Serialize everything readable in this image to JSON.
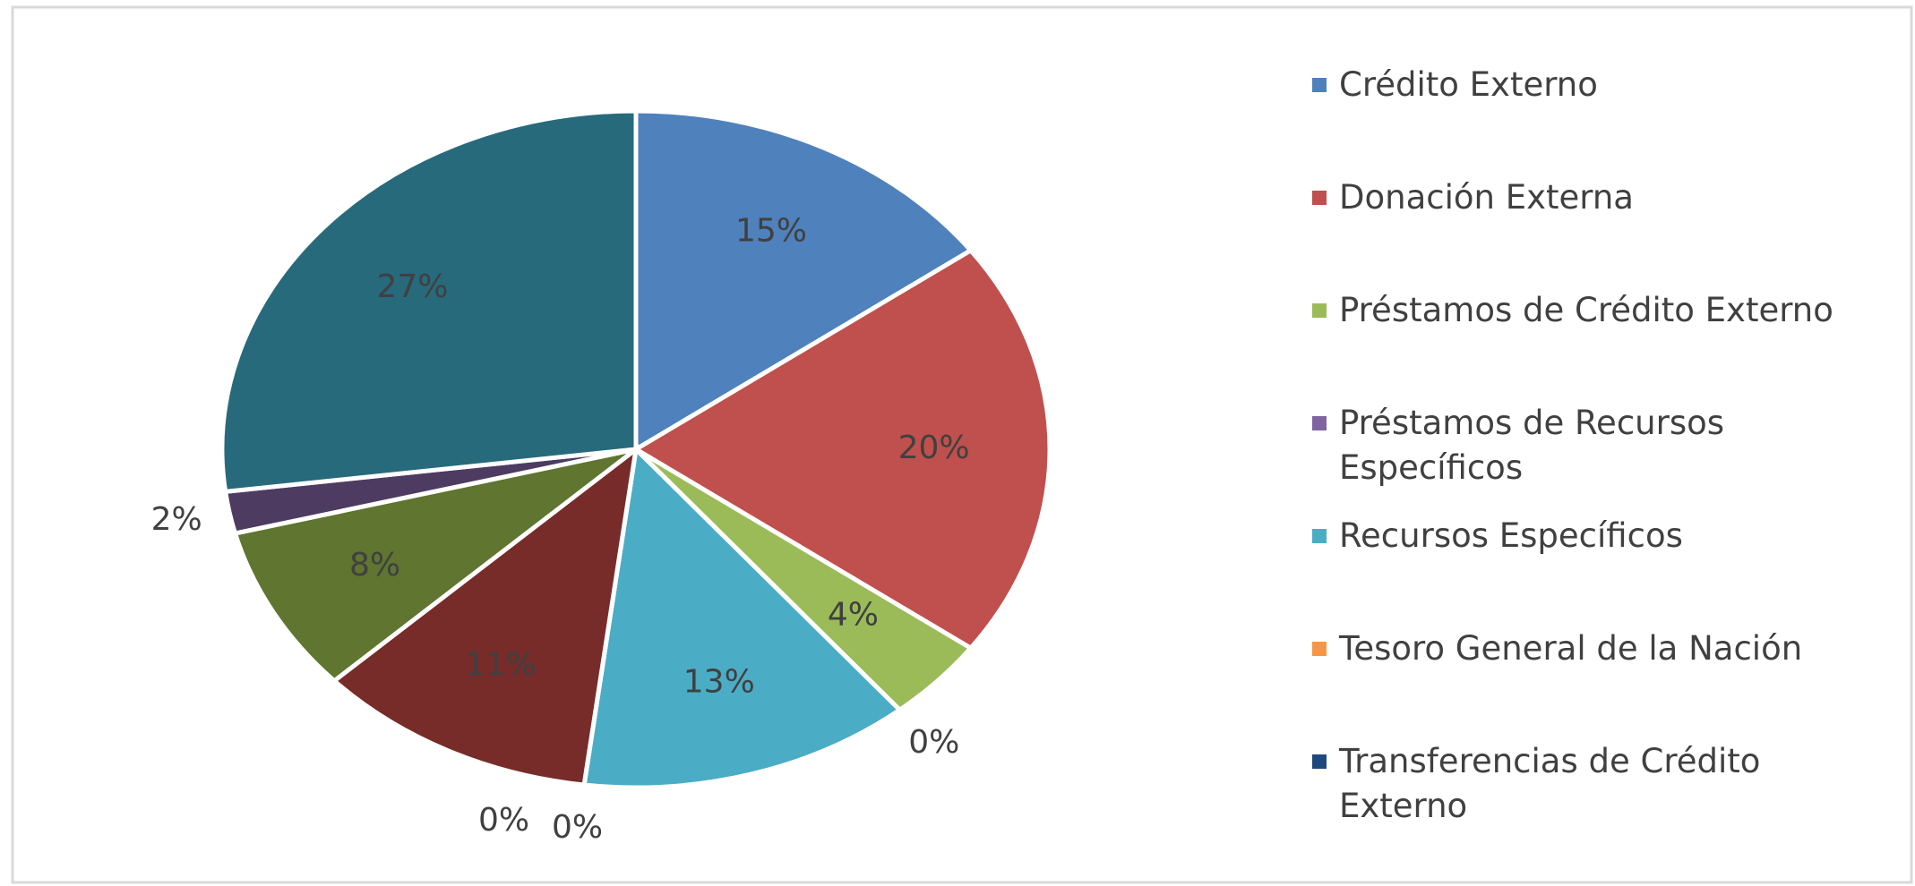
{
  "chart_data": {
    "type": "pie",
    "categories": [
      "Crédito Externo",
      "Donación Externa",
      "Préstamos de Crédito Externo",
      "Préstamos de Recursos Específicos",
      "Recursos Específicos",
      "Tesoro General de la Nación",
      "Transferencias de Crédito Externo",
      null,
      null,
      null,
      null
    ],
    "values": [
      15,
      20,
      4,
      0,
      13,
      0,
      0,
      11,
      8,
      2,
      27
    ],
    "value_labels": [
      "15%",
      "20%",
      "4%",
      "0%",
      "13%",
      "0%",
      "0%",
      "11%",
      "8%",
      "2%",
      "27%"
    ],
    "colors": [
      "#4f81bd",
      "#c0504d",
      "#9bbb59",
      "#8064a2",
      "#4bacc6",
      "#f79646",
      "#1f497d",
      "#772c2a",
      "#5f7530",
      "#4d3b62",
      "#276a7c"
    ],
    "legend": "right"
  }
}
